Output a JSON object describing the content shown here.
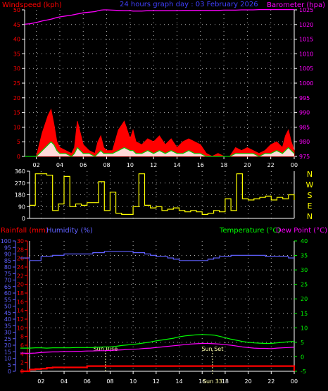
{
  "header": {
    "title": "24 hours graph day : 03 February 2026"
  },
  "colors": {
    "wind": "#ff0000",
    "gust": "#ff0000",
    "avgwind": "#00cc00",
    "windfill": "#ffffff",
    "baro": "#ff00ff",
    "dir": "#ffff00",
    "rain": "#ff0000",
    "humidity": "#6060ff",
    "temp": "#00ff00",
    "dew": "#ff00ff",
    "axis": "#ffffff",
    "grid": "#bbbbbb"
  },
  "chart_data": [
    {
      "type": "line",
      "panel": "wind-baro",
      "title": "24 hours graph day : 03 February 2026",
      "ylabel": "Windspeed (kph)",
      "y2label": "Barometer (hpa)",
      "ylim": [
        0,
        50
      ],
      "y2lim": [
        975,
        1025
      ],
      "yticks": [
        "0",
        "5",
        "10",
        "15",
        "20",
        "25",
        "30",
        "35",
        "40",
        "45",
        "50"
      ],
      "y2ticks": [
        "975",
        "980",
        "985",
        "990",
        "995",
        "1000",
        "1005",
        "1010",
        "1015",
        "1020",
        "1025"
      ],
      "xticks": [
        "02",
        "04",
        "06",
        "08",
        "10",
        "12",
        "14",
        "16",
        "18",
        "20",
        "22",
        "00"
      ],
      "xlim": [
        1,
        24
      ],
      "x": [
        1,
        1.5,
        2,
        2.5,
        3,
        3.25,
        3.5,
        3.75,
        4,
        4.5,
        5,
        5.25,
        5.5,
        6,
        6.5,
        7,
        7.25,
        7.5,
        7.75,
        8,
        8.5,
        9,
        9.5,
        10,
        10.25,
        10.5,
        11,
        11.5,
        12,
        12.5,
        13,
        13.5,
        14,
        14.5,
        15,
        15.5,
        16,
        16.5,
        17,
        17.5,
        18,
        18.5,
        19,
        19.5,
        20,
        20.5,
        21,
        21.5,
        22,
        22.5,
        23,
        23.25,
        23.5,
        23.75,
        24
      ],
      "series": [
        {
          "role": "gust",
          "values": [
            0,
            0,
            0,
            8,
            14,
            16,
            11,
            5,
            3,
            2,
            1,
            3,
            12,
            4,
            2,
            1,
            5,
            7,
            3,
            2,
            2,
            9,
            12,
            6,
            9,
            5,
            4,
            6,
            5,
            7,
            4,
            6,
            3,
            5,
            6,
            5,
            4,
            1,
            0,
            1,
            0,
            0,
            3,
            2,
            3,
            2,
            1,
            2,
            4,
            5,
            3,
            7,
            9,
            5,
            2
          ]
        },
        {
          "role": "average",
          "values": [
            0,
            0,
            0,
            2,
            4,
            5,
            4,
            2,
            1,
            1,
            0,
            1,
            3,
            1,
            1,
            0,
            1,
            2,
            1,
            1,
            1,
            2,
            3,
            2,
            2,
            1,
            1,
            2,
            1,
            2,
            1,
            2,
            1,
            1,
            2,
            1,
            1,
            0,
            0,
            0,
            0,
            0,
            1,
            1,
            1,
            1,
            0,
            1,
            1,
            2,
            1,
            2,
            3,
            2,
            1
          ]
        },
        {
          "role": "barometer",
          "values": [
            1020.1,
            1020.3,
            1020.7,
            1021.2,
            1021.6,
            1021.8,
            1022.1,
            1022.4,
            1022.6,
            1022.9,
            1023.2,
            1023.4,
            1023.6,
            1024.0,
            1024.2,
            1024.4,
            1024.7,
            1024.9,
            1025.0,
            1025.0,
            1024.9,
            1024.8,
            1024.7,
            1024.7,
            1024.6,
            1024.6,
            1024.6,
            1024.7,
            1024.7,
            1024.7,
            1024.7,
            1024.7,
            1024.7,
            1024.8,
            1024.8,
            1024.8,
            1024.8,
            1024.8,
            1024.8,
            1024.8,
            1024.9,
            1024.9,
            1024.9,
            1025.0,
            1025.0,
            1025.0,
            1025.1,
            1025.1,
            1025.1,
            1025.1,
            1025.1,
            1025.1,
            1025.1,
            1025.1,
            1025.1
          ]
        }
      ]
    },
    {
      "type": "line",
      "panel": "direction",
      "ylim": [
        0,
        360
      ],
      "yticks": [
        "0",
        "90",
        "180",
        "270",
        "360"
      ],
      "compass": [
        "N",
        "W",
        "S",
        "E",
        "N"
      ],
      "xlim": [
        1,
        24
      ],
      "x": [
        1,
        1.5,
        2,
        2.5,
        3,
        3.5,
        4,
        4.5,
        5,
        5.5,
        6,
        6.5,
        7,
        7.5,
        8,
        8.5,
        9,
        9.5,
        10,
        10.5,
        11,
        11.5,
        12,
        12.5,
        13,
        13.5,
        14,
        14.5,
        15,
        15.5,
        16,
        16.5,
        17,
        17.5,
        18,
        18.5,
        19,
        19.5,
        20,
        20.5,
        21,
        21.5,
        22,
        22.5,
        23,
        23.5,
        24
      ],
      "series": [
        {
          "role": "direction",
          "values": [
            100,
            340,
            340,
            330,
            60,
            110,
            320,
            90,
            110,
            100,
            120,
            120,
            280,
            60,
            200,
            40,
            30,
            30,
            90,
            340,
            100,
            80,
            90,
            60,
            70,
            80,
            60,
            50,
            60,
            50,
            30,
            40,
            60,
            50,
            150,
            60,
            340,
            150,
            140,
            150,
            160,
            170,
            140,
            160,
            150,
            180,
            140
          ]
        }
      ]
    },
    {
      "type": "line",
      "panel": "rain-humidity-temp",
      "ylabel": "Rainfall (mm)",
      "y2label": "Humidity (%)",
      "y3label": "Temperature (°C)",
      "y4label": "Dew Point (°C)",
      "rain_ylim": [
        0,
        30
      ],
      "rain_ticks": [
        "0",
        "2",
        "4",
        "6",
        "8",
        "10",
        "12",
        "14",
        "16",
        "18",
        "20",
        "22",
        "24",
        "26",
        "28",
        "30"
      ],
      "hum_ylim": [
        0,
        100
      ],
      "hum_ticks": [
        "0",
        "5",
        "10",
        "15",
        "20",
        "25",
        "30",
        "35",
        "40",
        "45",
        "50",
        "55",
        "60",
        "65",
        "70",
        "75",
        "80",
        "85",
        "90",
        "95",
        "100"
      ],
      "temp_ylim": [
        -5,
        40
      ],
      "temp_ticks": [
        "-5",
        "0",
        "5",
        "10",
        "15",
        "20",
        "25",
        "30",
        "35",
        "40"
      ],
      "xticks": [
        "02",
        "04",
        "06",
        "08",
        "10",
        "12",
        "14",
        "16",
        "18",
        "20",
        "22",
        "00"
      ],
      "xlim": [
        1,
        24
      ],
      "sunrise_label": "Sun Rise",
      "sunset_label": "Sun Set",
      "sunset_time_label": "Sun 33",
      "sunrise_x": 7.6,
      "sunset_x": 16.9,
      "x": [
        0.2,
        1,
        1.5,
        2,
        2.5,
        3,
        3.5,
        4,
        4.5,
        5,
        5.5,
        6,
        6.5,
        7,
        7.5,
        8,
        8.5,
        9,
        9.5,
        10,
        10.5,
        11,
        11.5,
        12,
        12.5,
        13,
        13.5,
        14,
        14.5,
        15,
        15.5,
        16,
        16.5,
        17,
        17.5,
        18,
        18.5,
        19,
        19.5,
        20,
        20.5,
        21,
        21.5,
        22,
        22.5,
        23,
        23.5,
        24
      ],
      "series": [
        {
          "role": "rainfall",
          "values": [
            0.0,
            0.4,
            0.5,
            0.6,
            0.8,
            0.9,
            0.9,
            0.9,
            0.9,
            0.9,
            0.9,
            1.2,
            1.2,
            1.2,
            1.2,
            1.2,
            1.2,
            1.2,
            1.2,
            1.2,
            1.2,
            1.2,
            1.2,
            1.2,
            1.2,
            1.2,
            1.2,
            1.2,
            1.2,
            1.2,
            1.2,
            1.2,
            1.2,
            1.2,
            1.2,
            1.2,
            1.2,
            1.2,
            1.2,
            1.2,
            1.2,
            1.2,
            1.2,
            1.2,
            1.2,
            1.2,
            1.2,
            0.0
          ]
        },
        {
          "role": "humidity",
          "values": [
            87,
            85,
            85,
            88,
            88,
            89,
            89,
            90,
            90,
            90,
            90,
            90,
            91,
            91,
            92,
            92,
            92,
            92,
            92,
            91,
            91,
            90,
            89,
            88,
            88,
            87,
            86,
            85,
            85,
            85,
            85,
            85,
            86,
            87,
            88,
            88,
            89,
            89,
            89,
            89,
            89,
            89,
            88,
            88,
            88,
            88,
            87,
            87
          ]
        },
        {
          "role": "temperature",
          "values": [
            3.0,
            3.0,
            3.1,
            3.1,
            3.0,
            3.1,
            3.1,
            3.1,
            3.1,
            3.2,
            3.2,
            3.2,
            3.2,
            3.3,
            3.4,
            3.4,
            3.6,
            3.9,
            4.1,
            4.3,
            4.5,
            4.8,
            5.1,
            5.5,
            5.8,
            6.1,
            6.4,
            6.9,
            7.2,
            7.4,
            7.6,
            7.7,
            7.6,
            7.5,
            7.1,
            6.6,
            6.1,
            5.7,
            5.3,
            5.0,
            4.8,
            4.7,
            4.6,
            4.6,
            4.8,
            5.0,
            5.2,
            5.3
          ]
        },
        {
          "role": "dewpoint",
          "values": [
            1.3,
            1.2,
            1.3,
            1.5,
            1.6,
            1.7,
            1.7,
            1.8,
            1.8,
            1.9,
            1.9,
            2.0,
            2.0,
            2.1,
            2.1,
            2.2,
            2.3,
            2.4,
            2.5,
            2.6,
            2.7,
            2.9,
            3.0,
            3.2,
            3.4,
            3.6,
            3.8,
            4.0,
            4.2,
            4.4,
            4.5,
            4.6,
            4.6,
            4.5,
            4.4,
            4.2,
            4.0,
            3.7,
            3.4,
            3.2,
            3.0,
            2.9,
            2.9,
            2.8,
            3.0,
            3.1,
            3.2,
            3.3
          ]
        }
      ]
    }
  ]
}
